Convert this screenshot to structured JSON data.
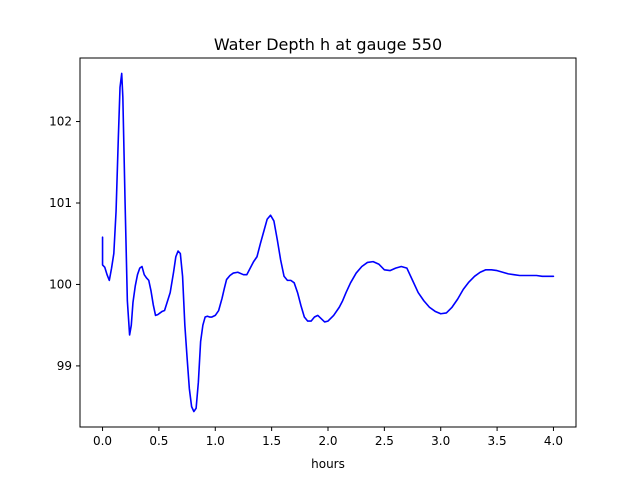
{
  "chart_data": {
    "type": "line",
    "title": "Water Depth h at gauge 550",
    "xlabel": "hours",
    "ylabel": "",
    "xlim": [
      -0.2,
      4.2
    ],
    "ylim": [
      98.25,
      102.78
    ],
    "xticks": [
      0.0,
      0.5,
      1.0,
      1.5,
      2.0,
      2.5,
      3.0,
      3.5,
      4.0
    ],
    "xtick_labels": [
      "0.0",
      "0.5",
      "1.0",
      "1.5",
      "2.0",
      "2.5",
      "3.0",
      "3.5",
      "4.0"
    ],
    "yticks": [
      99,
      100,
      101,
      102
    ],
    "ytick_labels": [
      "99",
      "100",
      "101",
      "102"
    ],
    "grid": false,
    "series": [
      {
        "color": "#0000ff",
        "x": [
          0.0,
          0.0,
          0.02,
          0.04,
          0.06,
          0.08,
          0.1,
          0.12,
          0.14,
          0.155,
          0.17,
          0.18,
          0.2,
          0.22,
          0.24,
          0.255,
          0.27,
          0.29,
          0.31,
          0.33,
          0.35,
          0.37,
          0.39,
          0.41,
          0.43,
          0.45,
          0.47,
          0.49,
          0.51,
          0.53,
          0.55,
          0.6,
          0.63,
          0.65,
          0.67,
          0.69,
          0.71,
          0.73,
          0.75,
          0.77,
          0.79,
          0.81,
          0.83,
          0.85,
          0.87,
          0.89,
          0.91,
          0.93,
          0.95,
          0.97,
          1.0,
          1.03,
          1.06,
          1.08,
          1.1,
          1.13,
          1.16,
          1.2,
          1.25,
          1.28,
          1.31,
          1.34,
          1.37,
          1.4,
          1.43,
          1.46,
          1.49,
          1.52,
          1.55,
          1.58,
          1.61,
          1.64,
          1.67,
          1.7,
          1.73,
          1.76,
          1.79,
          1.82,
          1.85,
          1.88,
          1.91,
          1.94,
          1.97,
          2.0,
          2.05,
          2.1,
          2.13,
          2.16,
          2.2,
          2.25,
          2.3,
          2.35,
          2.4,
          2.45,
          2.5,
          2.55,
          2.6,
          2.65,
          2.7,
          2.75,
          2.8,
          2.85,
          2.9,
          2.95,
          3.0,
          3.05,
          3.1,
          3.15,
          3.2,
          3.25,
          3.3,
          3.35,
          3.4,
          3.45,
          3.5,
          3.55,
          3.6,
          3.65,
          3.7,
          3.75,
          3.8,
          3.85,
          3.9,
          4.0
        ],
        "y": [
          100.58,
          100.24,
          100.21,
          100.12,
          100.05,
          100.2,
          100.38,
          100.9,
          101.8,
          102.42,
          102.59,
          102.3,
          101.0,
          99.8,
          99.38,
          99.5,
          99.78,
          99.98,
          100.12,
          100.2,
          100.22,
          100.12,
          100.08,
          100.05,
          99.92,
          99.75,
          99.62,
          99.63,
          99.65,
          99.67,
          99.68,
          99.9,
          100.15,
          100.34,
          100.41,
          100.38,
          100.1,
          99.5,
          99.1,
          98.72,
          98.5,
          98.44,
          98.48,
          98.8,
          99.3,
          99.5,
          99.6,
          99.61,
          99.6,
          99.6,
          99.62,
          99.68,
          99.83,
          99.95,
          100.06,
          100.11,
          100.14,
          100.15,
          100.12,
          100.12,
          100.2,
          100.28,
          100.34,
          100.5,
          100.65,
          100.8,
          100.85,
          100.78,
          100.55,
          100.3,
          100.1,
          100.05,
          100.05,
          100.02,
          99.9,
          99.74,
          99.6,
          99.55,
          99.55,
          99.6,
          99.62,
          99.58,
          99.54,
          99.55,
          99.62,
          99.72,
          99.8,
          99.9,
          100.02,
          100.14,
          100.22,
          100.27,
          100.28,
          100.25,
          100.18,
          100.17,
          100.2,
          100.22,
          100.2,
          100.05,
          99.9,
          99.8,
          99.72,
          99.67,
          99.64,
          99.65,
          99.72,
          99.82,
          99.94,
          100.03,
          100.1,
          100.15,
          100.18,
          100.18,
          100.17,
          100.15,
          100.13,
          100.12,
          100.11,
          100.11,
          100.11,
          100.11,
          100.1,
          100.1
        ]
      }
    ]
  }
}
